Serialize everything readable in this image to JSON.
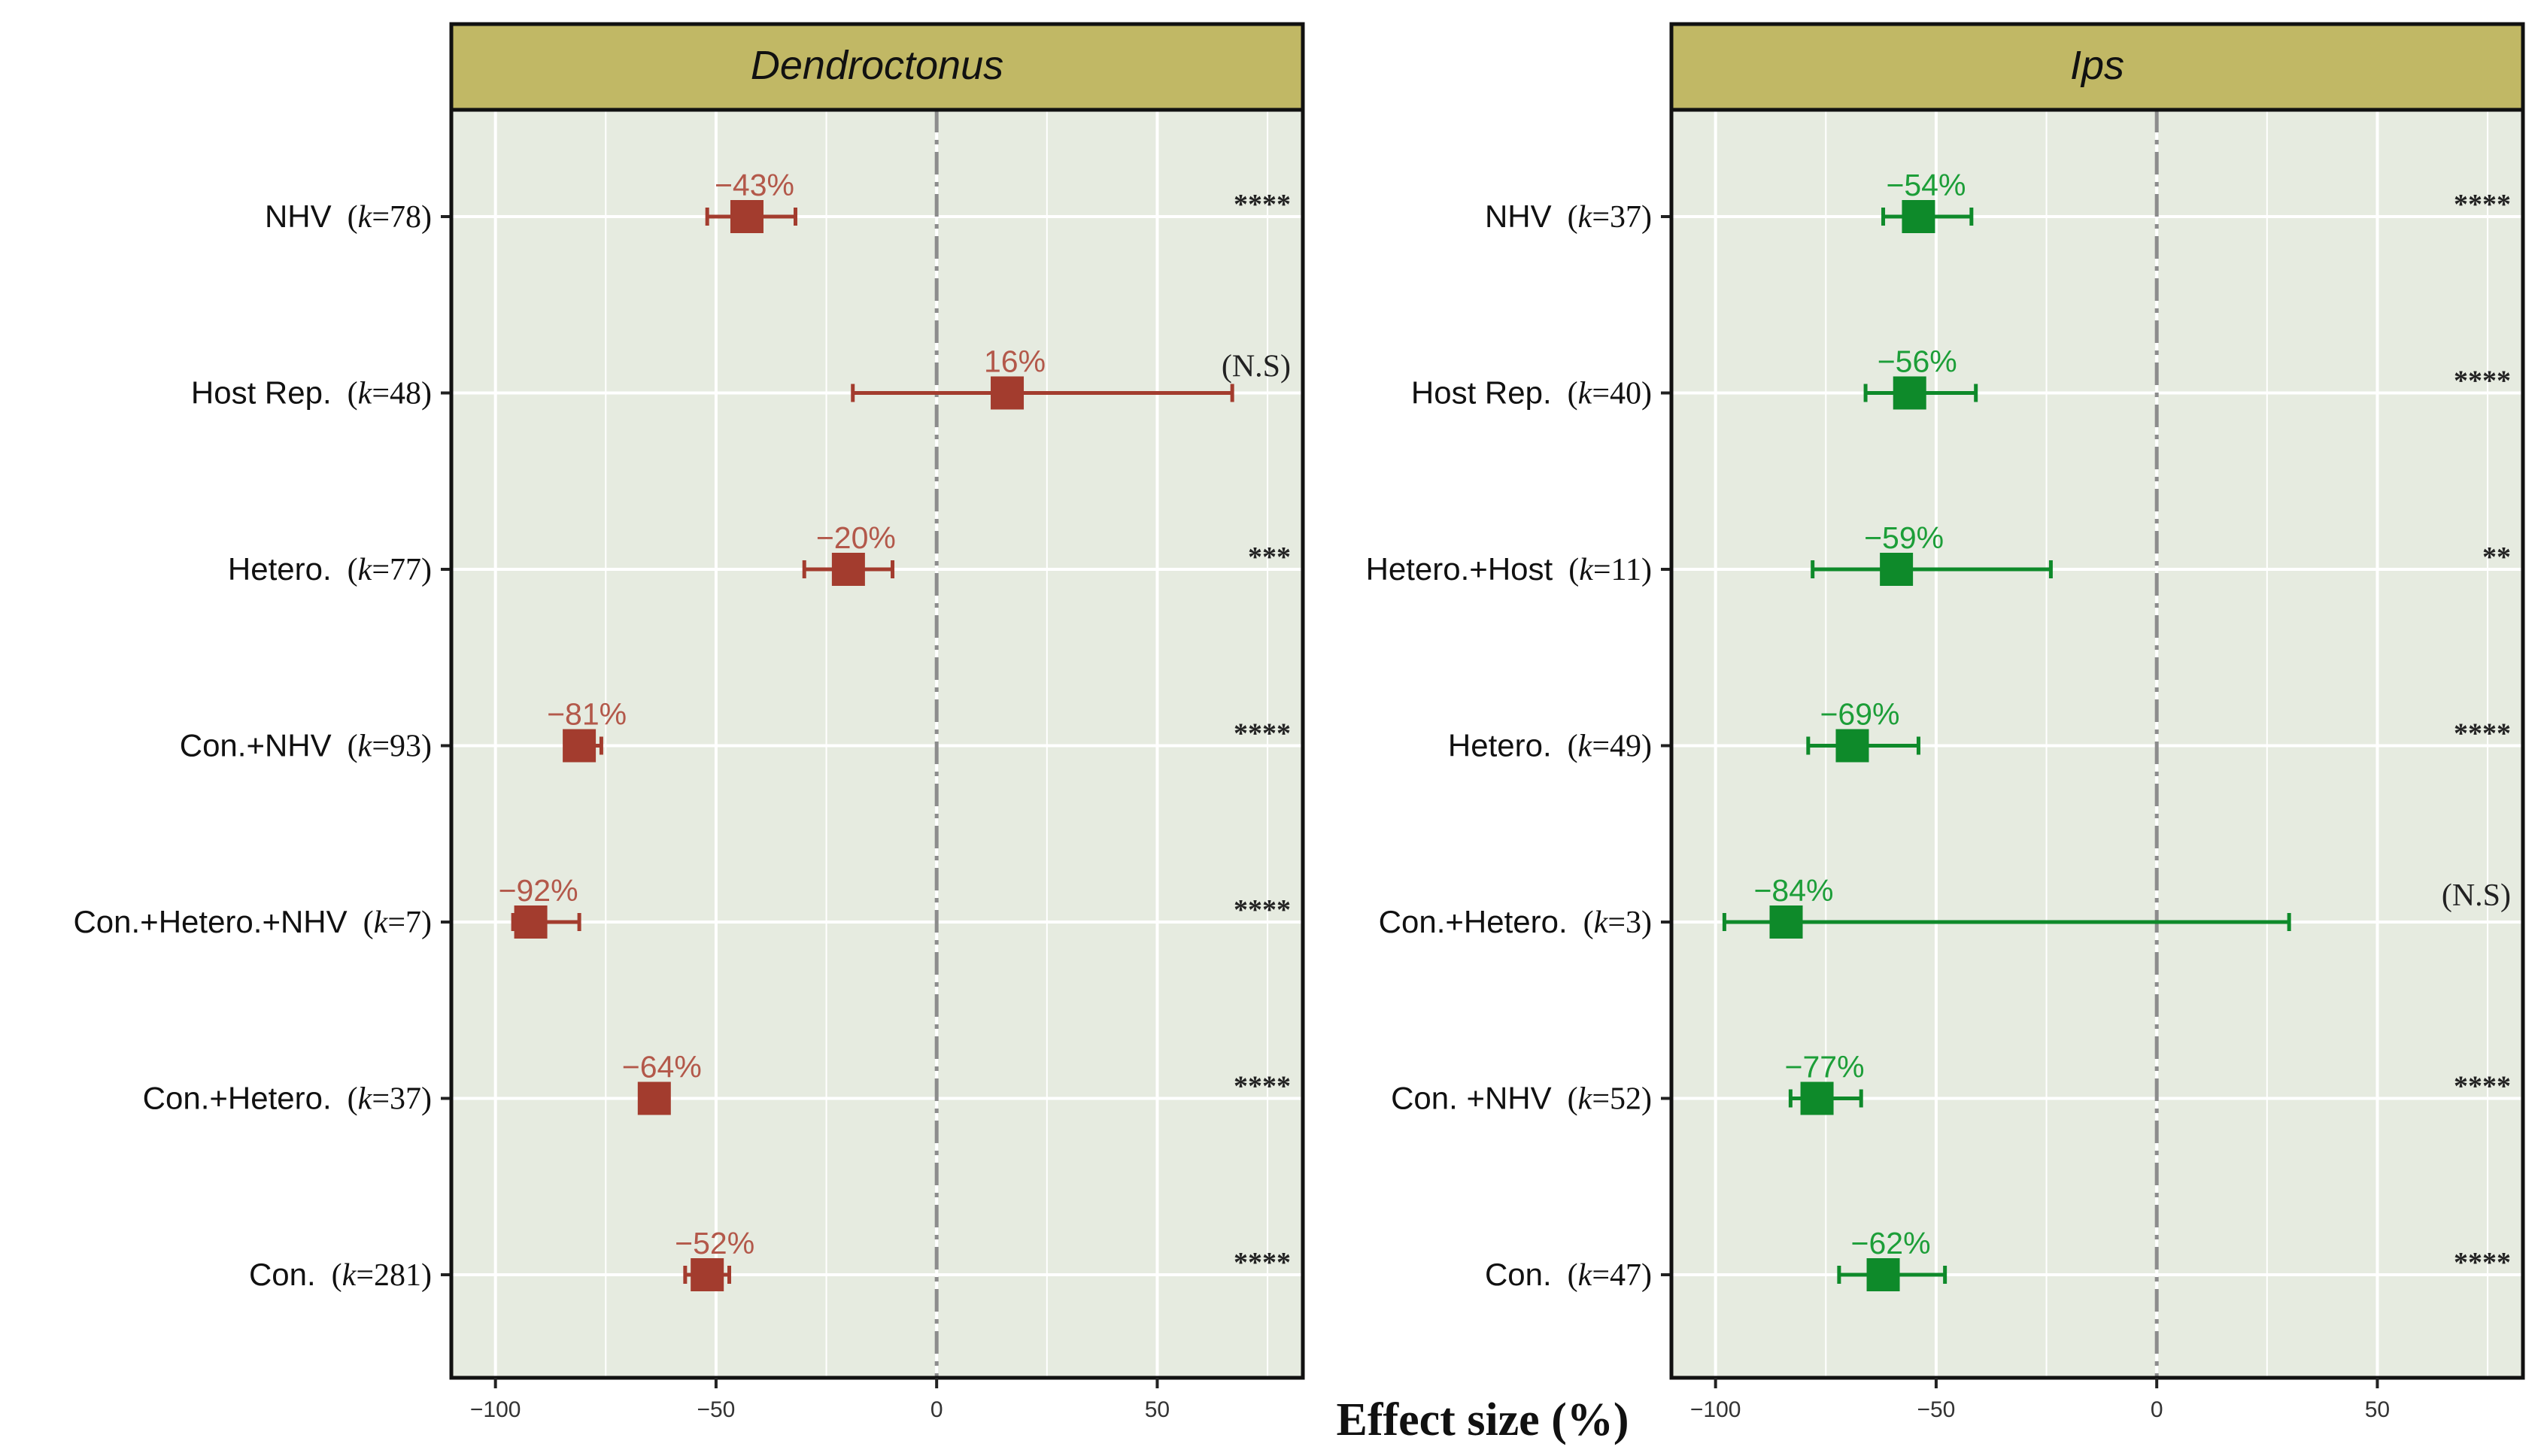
{
  "figure": {
    "xlabel": "Effect size (%)",
    "xlim": [
      -110,
      83
    ],
    "xticks": [
      -100,
      -50,
      0,
      50
    ],
    "tick_labels": [
      "−100",
      "−50",
      "0",
      "50"
    ],
    "background": "#E6EBE0",
    "strip_color": "#C1B865",
    "grid_color": "#FFFFFF",
    "zero_line_color": "#8C8C8C"
  },
  "chart_data": [
    {
      "type": "forest",
      "title": "Dendroctonus",
      "color": "#A33C2E",
      "label_color": "#B3584A",
      "rows": [
        {
          "label": "NHV",
          "k": "78",
          "estimate": -43,
          "ci": [
            -52,
            -32
          ],
          "label_text": "−43%",
          "sig": "****"
        },
        {
          "label": "Host Rep.",
          "k": "48",
          "estimate": 16,
          "ci": [
            -19,
            67
          ],
          "label_text": "16%",
          "sig": "(N.S)"
        },
        {
          "label": "Hetero.",
          "k": "77",
          "estimate": -20,
          "ci": [
            -30,
            -10
          ],
          "label_text": "−20%",
          "sig": "***"
        },
        {
          "label": "Con.+NHV",
          "k": "93",
          "estimate": -81,
          "ci": [
            -84,
            -76
          ],
          "label_text": "−81%",
          "sig": "****"
        },
        {
          "label": "Con.+Hetero.+NHV",
          "k": "7",
          "estimate": -92,
          "ci": [
            -96,
            -81
          ],
          "label_text": "−92%",
          "sig": "****"
        },
        {
          "label": "Con.+Hetero.",
          "k": "37",
          "estimate": -64,
          "ci": [
            -66,
            -62
          ],
          "label_text": "−64%",
          "sig": "****"
        },
        {
          "label": "Con.",
          "k": "281",
          "estimate": -52,
          "ci": [
            -57,
            -47
          ],
          "label_text": "−52%",
          "sig": "****"
        }
      ]
    },
    {
      "type": "forest",
      "title": "Ips",
      "color": "#0E8A2A",
      "label_color": "#1C9E38",
      "rows": [
        {
          "label": "NHV",
          "k": "37",
          "estimate": -54,
          "ci": [
            -62,
            -42
          ],
          "label_text": "−54%",
          "sig": "****"
        },
        {
          "label": "Host Rep.",
          "k": "40",
          "estimate": -56,
          "ci": [
            -66,
            -41
          ],
          "label_text": "−56%",
          "sig": "****"
        },
        {
          "label": "Hetero.+Host",
          "k": "11",
          "estimate": -59,
          "ci": [
            -78,
            -24
          ],
          "label_text": "−59%",
          "sig": "**"
        },
        {
          "label": "Hetero.",
          "k": "49",
          "estimate": -69,
          "ci": [
            -79,
            -54
          ],
          "label_text": "−69%",
          "sig": "****"
        },
        {
          "label": "Con.+Hetero.",
          "k": "3",
          "estimate": -84,
          "ci": [
            -98,
            30
          ],
          "label_text": "−84%",
          "sig": "(N.S)"
        },
        {
          "label": "Con. +NHV",
          "k": "52",
          "estimate": -77,
          "ci": [
            -83,
            -67
          ],
          "label_text": "−77%",
          "sig": "****"
        },
        {
          "label": "Con.",
          "k": "47",
          "estimate": -62,
          "ci": [
            -72,
            -48
          ],
          "label_text": "−62%",
          "sig": "****"
        }
      ]
    }
  ]
}
